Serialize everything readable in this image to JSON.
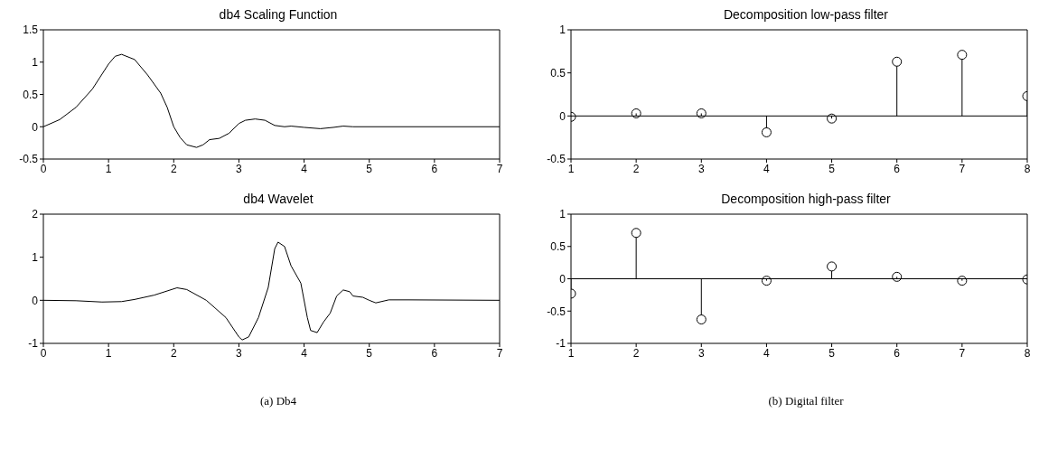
{
  "chart_data": [
    {
      "type": "line",
      "title": "db4 Scaling Function",
      "color": "#000000",
      "x": [
        0,
        0.25,
        0.5,
        0.75,
        1.0,
        1.1,
        1.2,
        1.4,
        1.6,
        1.8,
        1.9,
        2.0,
        2.1,
        2.2,
        2.35,
        2.45,
        2.55,
        2.7,
        2.85,
        3.0,
        3.1,
        3.25,
        3.4,
        3.55,
        3.7,
        3.8,
        4.0,
        4.25,
        4.45,
        4.6,
        4.75,
        7
      ],
      "values": [
        0,
        0.11,
        0.3,
        0.58,
        0.97,
        1.09,
        1.12,
        1.04,
        0.8,
        0.52,
        0.3,
        0.0,
        -0.17,
        -0.28,
        -0.32,
        -0.28,
        -0.2,
        -0.18,
        -0.1,
        0.05,
        0.1,
        0.12,
        0.1,
        0.02,
        0.0,
        0.01,
        -0.01,
        -0.03,
        -0.01,
        0.01,
        0,
        0
      ],
      "xlim": [
        0,
        7
      ],
      "xticks": [
        0,
        1,
        2,
        3,
        4,
        5,
        6,
        7
      ],
      "ylim": [
        -0.5,
        1.5
      ],
      "yticks": [
        -0.5,
        0,
        0.5,
        1,
        1.5
      ]
    },
    {
      "type": "line",
      "title": "db4 Wavelet",
      "color": "#000000",
      "x": [
        0,
        0.5,
        0.9,
        1.2,
        1.4,
        1.7,
        2.05,
        2.2,
        2.5,
        2.8,
        3.0,
        3.05,
        3.15,
        3.3,
        3.45,
        3.55,
        3.6,
        3.7,
        3.8,
        3.95,
        4.05,
        4.1,
        4.2,
        4.3,
        4.4,
        4.5,
        4.6,
        4.7,
        4.75,
        4.9,
        5.0,
        5.1,
        5.3,
        5.6,
        7
      ],
      "values": [
        0,
        -0.01,
        -0.04,
        -0.03,
        0.02,
        0.12,
        0.29,
        0.25,
        0.0,
        -0.4,
        -0.85,
        -0.92,
        -0.85,
        -0.4,
        0.3,
        1.2,
        1.35,
        1.25,
        0.8,
        0.4,
        -0.4,
        -0.7,
        -0.75,
        -0.5,
        -0.3,
        0.1,
        0.24,
        0.2,
        0.1,
        0.07,
        0.0,
        -0.06,
        0.01,
        0.01,
        0
      ],
      "xlim": [
        0,
        7
      ],
      "xticks": [
        0,
        1,
        2,
        3,
        4,
        5,
        6,
        7
      ],
      "ylim": [
        -1,
        2
      ],
      "yticks": [
        -1,
        0,
        1,
        2
      ],
      "annotations": [
        "(a)  Db4"
      ]
    },
    {
      "type": "lollipop",
      "title": "Decomposition low-pass filter",
      "color": "#000000",
      "marker": "circle",
      "x": [
        1,
        2,
        3,
        4,
        5,
        6,
        7,
        8
      ],
      "values": [
        -0.01,
        0.03,
        0.03,
        -0.19,
        -0.03,
        0.63,
        0.71,
        0.23
      ],
      "xlim": [
        1,
        8
      ],
      "xticks": [
        1,
        2,
        3,
        4,
        5,
        6,
        7,
        8
      ],
      "ylim": [
        -0.5,
        1
      ],
      "yticks": [
        -0.5,
        0,
        0.5,
        1
      ]
    },
    {
      "type": "lollipop",
      "title": "Decomposition high-pass filter",
      "color": "#000000",
      "marker": "circle",
      "x": [
        1,
        2,
        3,
        4,
        5,
        6,
        7,
        8
      ],
      "values": [
        -0.23,
        0.71,
        -0.63,
        -0.03,
        0.19,
        0.03,
        -0.03,
        -0.01
      ],
      "xlim": [
        1,
        8
      ],
      "xticks": [
        1,
        2,
        3,
        4,
        5,
        6,
        7,
        8
      ],
      "ylim": [
        -1,
        1
      ],
      "yticks": [
        -1,
        -0.5,
        0,
        0.5,
        1
      ],
      "annotations": [
        "(b)  Digital filter"
      ]
    }
  ]
}
